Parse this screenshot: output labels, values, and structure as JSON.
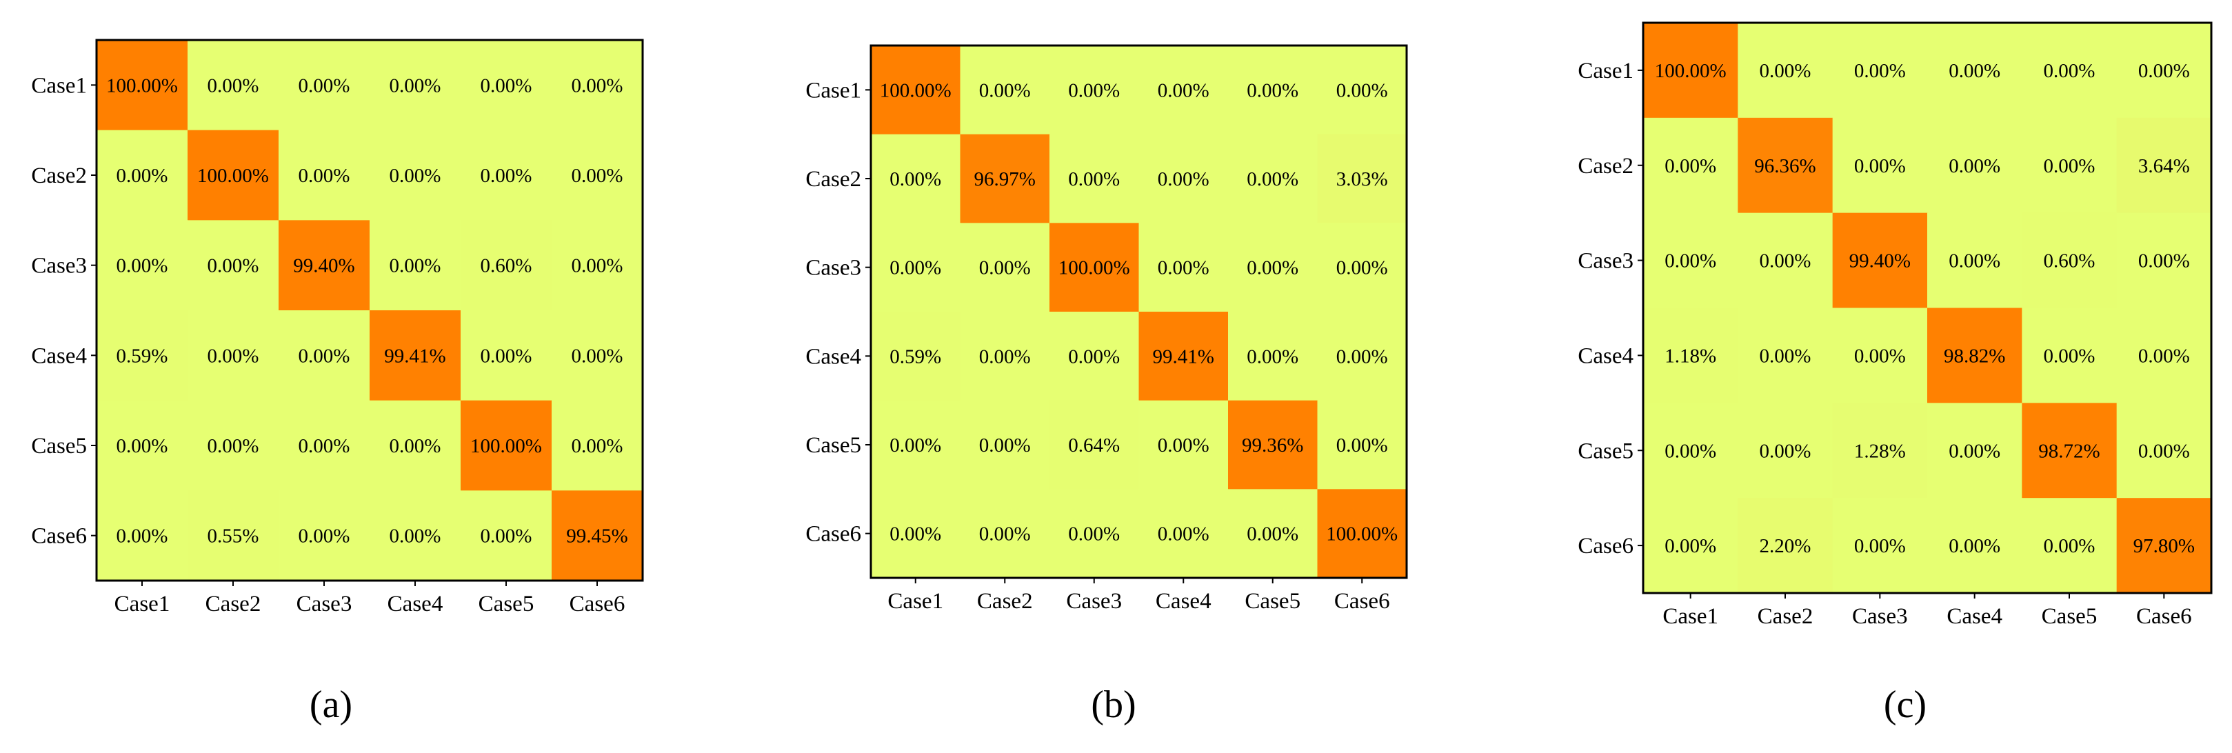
{
  "chart_data": [
    {
      "type": "heatmap",
      "panel_label": "(a)",
      "row_labels": [
        "Case1",
        "Case2",
        "Case3",
        "Case4",
        "Case5",
        "Case6"
      ],
      "col_labels": [
        "Case1",
        "Case2",
        "Case3",
        "Case4",
        "Case5",
        "Case6"
      ],
      "values": [
        [
          100.0,
          0.0,
          0.0,
          0.0,
          0.0,
          0.0
        ],
        [
          0.0,
          100.0,
          0.0,
          0.0,
          0.0,
          0.0
        ],
        [
          0.0,
          0.0,
          99.4,
          0.0,
          0.6,
          0.0
        ],
        [
          0.59,
          0.0,
          0.0,
          99.41,
          0.0,
          0.0
        ],
        [
          0.0,
          0.0,
          0.0,
          0.0,
          100.0,
          0.0
        ],
        [
          0.0,
          0.55,
          0.0,
          0.0,
          0.0,
          99.45
        ]
      ],
      "cell_labels": [
        [
          "100.00%",
          "0.00%",
          "0.00%",
          "0.00%",
          "0.00%",
          "0.00%"
        ],
        [
          "0.00%",
          "100.00%",
          "0.00%",
          "0.00%",
          "0.00%",
          "0.00%"
        ],
        [
          "0.00%",
          "0.00%",
          "99.40%",
          "0.00%",
          "0.60%",
          "0.00%"
        ],
        [
          "0.59%",
          "0.00%",
          "0.00%",
          "99.41%",
          "0.00%",
          "0.00%"
        ],
        [
          "0.00%",
          "0.00%",
          "0.00%",
          "0.00%",
          "100.00%",
          "0.00%"
        ],
        [
          "0.00%",
          "0.55%",
          "0.00%",
          "0.00%",
          "0.00%",
          "99.45%"
        ]
      ]
    },
    {
      "type": "heatmap",
      "panel_label": "(b)",
      "row_labels": [
        "Case1",
        "Case2",
        "Case3",
        "Case4",
        "Case5",
        "Case6"
      ],
      "col_labels": [
        "Case1",
        "Case2",
        "Case3",
        "Case4",
        "Case5",
        "Case6"
      ],
      "values": [
        [
          100.0,
          0.0,
          0.0,
          0.0,
          0.0,
          0.0
        ],
        [
          0.0,
          96.97,
          0.0,
          0.0,
          0.0,
          3.03
        ],
        [
          0.0,
          0.0,
          100.0,
          0.0,
          0.0,
          0.0
        ],
        [
          0.59,
          0.0,
          0.0,
          99.41,
          0.0,
          0.0
        ],
        [
          0.0,
          0.0,
          0.64,
          0.0,
          99.36,
          0.0
        ],
        [
          0.0,
          0.0,
          0.0,
          0.0,
          0.0,
          100.0
        ]
      ],
      "cell_labels": [
        [
          "100.00%",
          "0.00%",
          "0.00%",
          "0.00%",
          "0.00%",
          "0.00%"
        ],
        [
          "0.00%",
          "96.97%",
          "0.00%",
          "0.00%",
          "0.00%",
          "3.03%"
        ],
        [
          "0.00%",
          "0.00%",
          "100.00%",
          "0.00%",
          "0.00%",
          "0.00%"
        ],
        [
          "0.59%",
          "0.00%",
          "0.00%",
          "99.41%",
          "0.00%",
          "0.00%"
        ],
        [
          "0.00%",
          "0.00%",
          "0.64%",
          "0.00%",
          "99.36%",
          "0.00%"
        ],
        [
          "0.00%",
          "0.00%",
          "0.00%",
          "0.00%",
          "0.00%",
          "100.00%"
        ]
      ]
    },
    {
      "type": "heatmap",
      "panel_label": "(c)",
      "row_labels": [
        "Case1",
        "Case2",
        "Case3",
        "Case4",
        "Case5",
        "Case6"
      ],
      "col_labels": [
        "Case1",
        "Case2",
        "Case3",
        "Case4",
        "Case5",
        "Case6"
      ],
      "values": [
        [
          100.0,
          0.0,
          0.0,
          0.0,
          0.0,
          0.0
        ],
        [
          0.0,
          96.36,
          0.0,
          0.0,
          0.0,
          3.64
        ],
        [
          0.0,
          0.0,
          99.4,
          0.0,
          0.6,
          0.0
        ],
        [
          1.18,
          0.0,
          0.0,
          98.82,
          0.0,
          0.0
        ],
        [
          0.0,
          0.0,
          1.28,
          0.0,
          98.72,
          0.0
        ],
        [
          0.0,
          2.2,
          0.0,
          0.0,
          0.0,
          97.8
        ]
      ],
      "cell_labels": [
        [
          "100.00%",
          "0.00%",
          "0.00%",
          "0.00%",
          "0.00%",
          "0.00%"
        ],
        [
          "0.00%",
          "96.36%",
          "0.00%",
          "0.00%",
          "0.00%",
          "3.64%"
        ],
        [
          "0.00%",
          "0.00%",
          "99.40%",
          "0.00%",
          "0.60%",
          "0.00%"
        ],
        [
          "1.18%",
          "0.00%",
          "0.00%",
          "98.82%",
          "0.00%",
          "0.00%"
        ],
        [
          "0.00%",
          "0.00%",
          "1.28%",
          "0.00%",
          "98.72%",
          "0.00%"
        ],
        [
          "0.00%",
          "2.20%",
          "0.00%",
          "0.00%",
          "0.00%",
          "97.80%"
        ]
      ]
    }
  ],
  "colors": {
    "low": "#e6ff72",
    "high": "#ff8000",
    "border": "#000000",
    "text": "#000000"
  }
}
